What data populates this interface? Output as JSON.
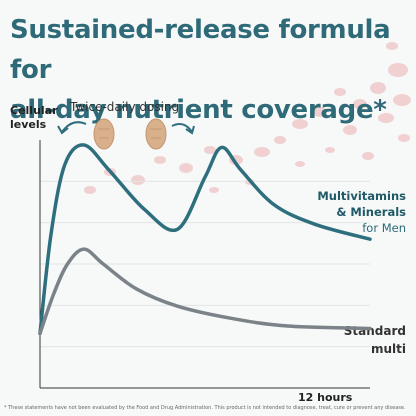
{
  "title_line1": "Sustained-release formula for",
  "title_line2": "all-day nutrient coverage*",
  "y_axis_label": "Cellular levels",
  "dosing_label": "Twice-daily dosing",
  "series1_label_line1": "Multivitamins",
  "series1_label_line2": "& Minerals",
  "series1_label_line3": "for Men",
  "series2_label_line1": "Standard",
  "series2_label_line2": "multi",
  "x_axis_end_label": "12 hours",
  "footnote": "* These statements have not been evaluated by the Food and Drug Administration. This product is not intended to diagnose, treat, cure or prevent any disease.",
  "colors": {
    "title": "#2f6a78",
    "series1": "#2e6f7e",
    "series2": "#7b8389",
    "pill": "#d9b08c",
    "blood_cells": "#e8888a",
    "background": "#f7f8f8"
  },
  "chart_data": {
    "type": "line",
    "xlabel": "12 hours",
    "ylabel": "Cellular levels",
    "xlim": [
      0,
      12
    ],
    "ylim": [
      0,
      1
    ],
    "grid": true,
    "series": [
      {
        "name": "Multivitamins & Minerals for Men",
        "color": "#2e6f7e",
        "x": [
          0,
          0.4,
          0.9,
          1.6,
          2.5,
          3.8,
          5.0,
          6.0,
          6.6,
          7.3,
          8.5,
          10.0,
          12.0
        ],
        "y": [
          0.22,
          0.62,
          0.9,
          0.98,
          0.88,
          0.72,
          0.64,
          0.85,
          0.97,
          0.88,
          0.74,
          0.66,
          0.6
        ]
      },
      {
        "name": "Standard multi",
        "color": "#7b8389",
        "x": [
          0,
          0.5,
          1.0,
          1.6,
          2.3,
          3.5,
          5.0,
          7.0,
          9.0,
          12.0
        ],
        "y": [
          0.22,
          0.38,
          0.5,
          0.56,
          0.5,
          0.4,
          0.33,
          0.28,
          0.25,
          0.24
        ]
      }
    ]
  }
}
